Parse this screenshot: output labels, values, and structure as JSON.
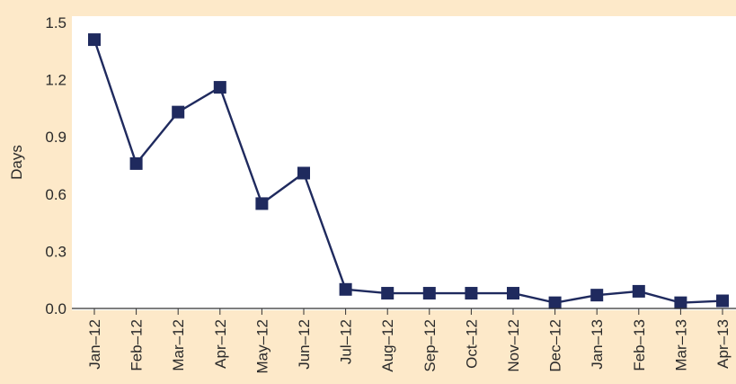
{
  "chart_data": {
    "type": "line",
    "title": "",
    "xlabel": "",
    "ylabel": "Days",
    "ylim": [
      0.0,
      1.5
    ],
    "yticks": [
      "0.0",
      "0.3",
      "0.6",
      "0.9",
      "1.2",
      "1.5"
    ],
    "categories": [
      "Jan–12",
      "Feb–12",
      "Mar–12",
      "Apr–12",
      "May–12",
      "Jun–12",
      "Jul–12",
      "Aug–12",
      "Sep–12",
      "Oct–12",
      "Nov–12",
      "Dec–12",
      "Jan–13",
      "Feb–13",
      "Mar–13",
      "Apr–13"
    ],
    "series": [
      {
        "values": [
          1.41,
          0.76,
          1.03,
          1.16,
          0.55,
          0.71,
          0.1,
          0.08,
          0.08,
          0.08,
          0.08,
          0.03,
          0.07,
          0.09,
          0.03,
          0.04
        ]
      }
    ],
    "grid": false,
    "legend": "none",
    "colors": {
      "background": "#fde9c9",
      "plot_background": "#ffffff",
      "series": "#1f2a5e",
      "axis": "#333333"
    }
  }
}
